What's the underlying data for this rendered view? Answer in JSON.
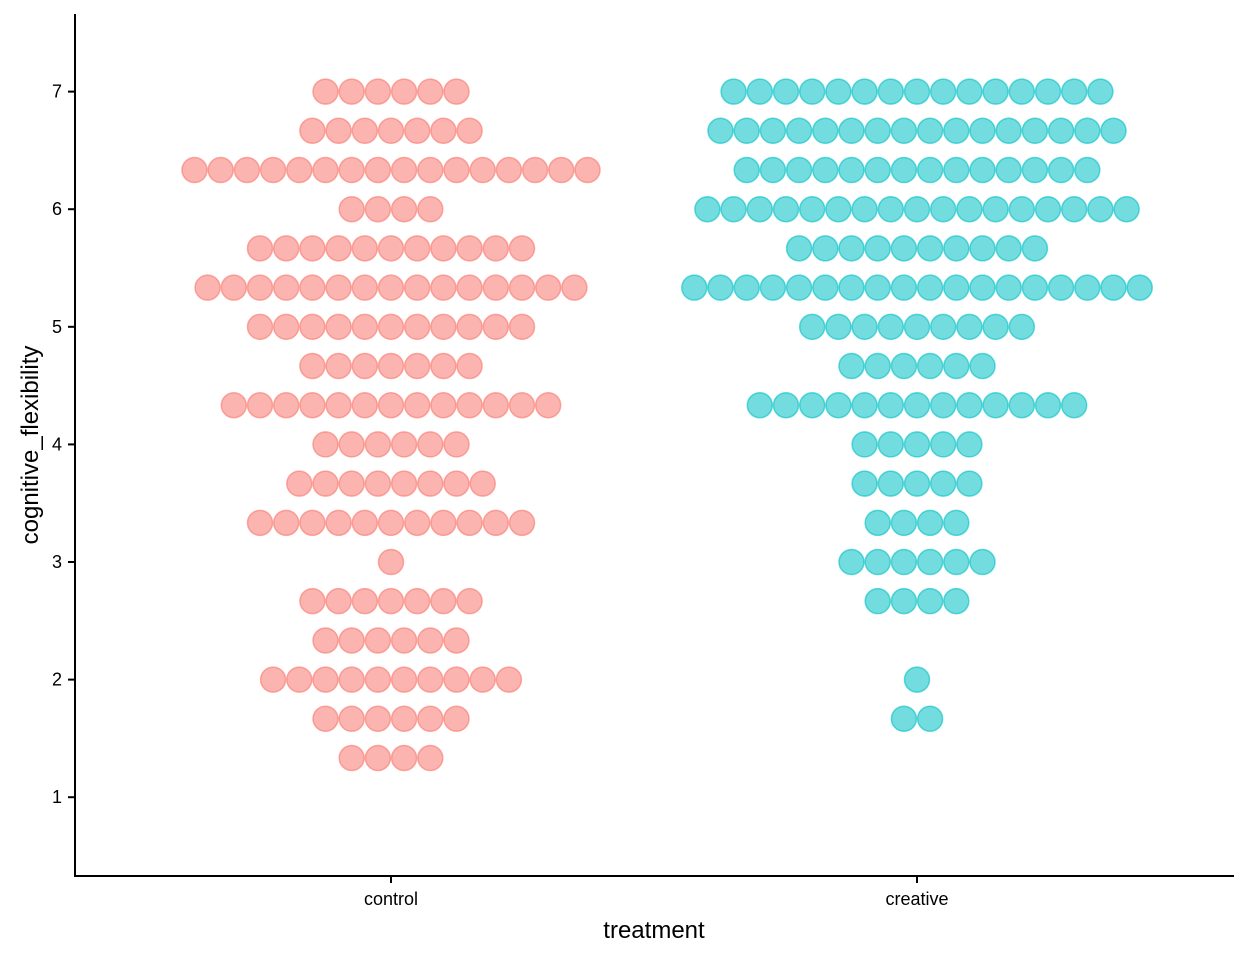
{
  "chart_data": {
    "type": "dotplot",
    "xlabel": "treatment",
    "ylabel": "cognitive_flexibility",
    "categories": [
      "control",
      "creative"
    ],
    "ylim": [
      0.33,
      7.66
    ],
    "yticks": [
      "1",
      "2",
      "3",
      "4",
      "5",
      "6",
      "7"
    ],
    "grid": false,
    "legend": "none",
    "series": [
      {
        "category": "control",
        "color": "#F8766D",
        "bins": [
          {
            "y": 7,
            "count": 6
          },
          {
            "y": 6.667,
            "count": 7
          },
          {
            "y": 6.333,
            "count": 16
          },
          {
            "y": 6,
            "count": 4
          },
          {
            "y": 5.667,
            "count": 11
          },
          {
            "y": 5.333,
            "count": 15
          },
          {
            "y": 5,
            "count": 11
          },
          {
            "y": 4.667,
            "count": 7
          },
          {
            "y": 4.333,
            "count": 13
          },
          {
            "y": 4,
            "count": 6
          },
          {
            "y": 3.667,
            "count": 8
          },
          {
            "y": 3.333,
            "count": 11
          },
          {
            "y": 3,
            "count": 1
          },
          {
            "y": 2.667,
            "count": 7
          },
          {
            "y": 2.333,
            "count": 6
          },
          {
            "y": 2,
            "count": 10
          },
          {
            "y": 1.667,
            "count": 6
          },
          {
            "y": 1.333,
            "count": 4
          }
        ]
      },
      {
        "category": "creative",
        "color": "#00BFC4",
        "bins": [
          {
            "y": 7,
            "count": 15
          },
          {
            "y": 6.667,
            "count": 16
          },
          {
            "y": 6.333,
            "count": 14
          },
          {
            "y": 6,
            "count": 17
          },
          {
            "y": 5.667,
            "count": 10
          },
          {
            "y": 5.333,
            "count": 18
          },
          {
            "y": 5,
            "count": 9
          },
          {
            "y": 4.667,
            "count": 6
          },
          {
            "y": 4.333,
            "count": 13
          },
          {
            "y": 4,
            "count": 5
          },
          {
            "y": 3.667,
            "count": 5
          },
          {
            "y": 3.333,
            "count": 4
          },
          {
            "y": 3,
            "count": 6
          },
          {
            "y": 2.667,
            "count": 4
          },
          {
            "y": 2,
            "count": 1
          },
          {
            "y": 1.667,
            "count": 2
          }
        ]
      }
    ]
  }
}
